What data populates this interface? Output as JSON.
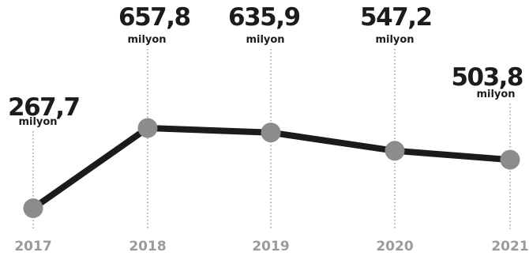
{
  "chart_data": {
    "type": "line",
    "x": [
      "2017",
      "2018",
      "2019",
      "2020",
      "2021"
    ],
    "values": [
      267.7,
      657.8,
      635.9,
      547.2,
      503.8
    ],
    "value_labels": [
      "267,7",
      "657,8",
      "635,9",
      "547,2",
      "503,8"
    ],
    "unit_label": "milyon",
    "title": "",
    "xlabel": "",
    "ylabel": "",
    "grid": false,
    "colors": {
      "line": "#1b1b1b",
      "point": "#8c8c8c",
      "year": "#9b9b9b",
      "text": "#1c1c1c",
      "guide": "#8a8a8a"
    }
  }
}
